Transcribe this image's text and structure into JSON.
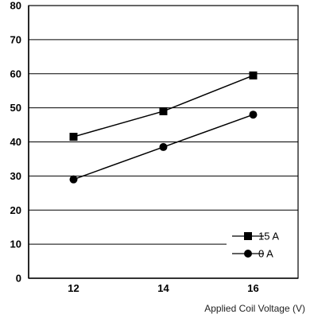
{
  "chart_data": {
    "type": "line",
    "title": "",
    "xlabel": "Applied Coil Voltage (V)",
    "ylabel": "",
    "x_ticks": [
      "12",
      "14",
      "16"
    ],
    "y_ticks": [
      "0",
      "10",
      "20",
      "30",
      "40",
      "50",
      "60",
      "70",
      "80"
    ],
    "xlim": [
      11,
      17
    ],
    "ylim": [
      0,
      80
    ],
    "grid": "horizontal",
    "legend_position": "bottom-right",
    "series": [
      {
        "name": "15 A",
        "marker": "square",
        "color": "#000000",
        "x": [
          12,
          14,
          16
        ],
        "y": [
          41.5,
          49,
          59.5
        ]
      },
      {
        "name": "0 A",
        "marker": "circle",
        "color": "#000000",
        "x": [
          12,
          14,
          16
        ],
        "y": [
          29,
          38.5,
          48
        ]
      }
    ]
  }
}
